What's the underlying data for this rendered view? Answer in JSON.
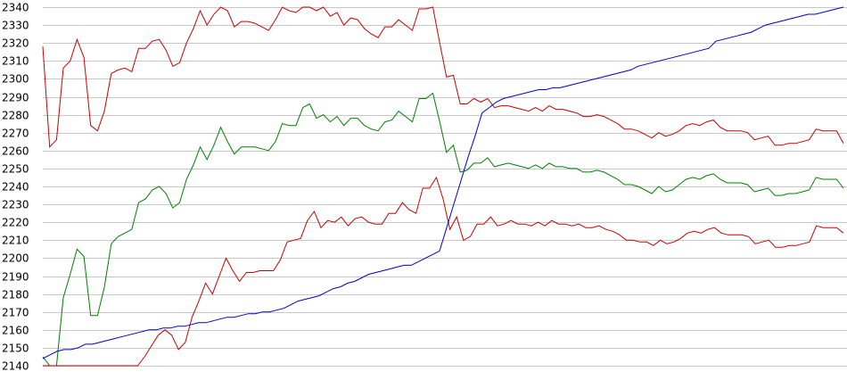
{
  "chart_data": {
    "type": "line",
    "title": "",
    "xlabel": "",
    "ylabel": "",
    "ylim": [
      2140,
      2340
    ],
    "y_ticks": [
      2140,
      2150,
      2160,
      2170,
      2180,
      2190,
      2200,
      2210,
      2220,
      2230,
      2240,
      2250,
      2260,
      2270,
      2280,
      2290,
      2300,
      2310,
      2320,
      2330,
      2340
    ],
    "grid": "horizontal",
    "legend": "none",
    "x_count": 133,
    "series": [
      {
        "color": "#cc0000",
        "values": [
          2318,
          2262,
          2266,
          2306,
          2310,
          2322,
          2312,
          2274,
          2271,
          2282,
          2303,
          2305,
          2306,
          2304,
          2317,
          2317,
          2321,
          2322,
          2316,
          2307,
          2309,
          2320,
          2328,
          2338,
          2330,
          2336,
          2340,
          2338,
          2329,
          2332,
          2332,
          2331,
          2329,
          2327,
          2333,
          2340,
          2338,
          2337,
          2340,
          2340,
          2338,
          2340,
          2335,
          2337,
          2330,
          2334,
          2333,
          2328,
          2325,
          2323,
          2329,
          2329,
          2333,
          2330,
          2327,
          2339,
          2339,
          2340,
          2320,
          2301,
          2302,
          2286,
          2286,
          2289,
          2287,
          2289,
          2284,
          2285,
          2285,
          2284,
          2283,
          2282,
          2284,
          2282,
          2285,
          2283,
          2283,
          2282,
          2281,
          2279,
          2279,
          2280,
          2279,
          2277,
          2275,
          2272,
          2272,
          2271,
          2269,
          2267,
          2270,
          2268,
          2269,
          2271,
          2274,
          2275,
          2274,
          2276,
          2277,
          2273,
          2271,
          2271,
          2271,
          2270,
          2266,
          2267,
          2268,
          2263,
          2263,
          2264,
          2264,
          2265,
          2266,
          2272,
          2271,
          2271,
          2271,
          2264
        ]
      },
      {
        "color": "#008000",
        "values": [
          2145,
          2140,
          2140,
          2178,
          2191,
          2205,
          2201,
          2168,
          2168,
          2184,
          2208,
          2212,
          2214,
          2216,
          2231,
          2233,
          2238,
          2240,
          2236,
          2228,
          2231,
          2244,
          2252,
          2262,
          2255,
          2263,
          2273,
          2265,
          2258,
          2262,
          2262,
          2262,
          2261,
          2260,
          2265,
          2275,
          2274,
          2274,
          2284,
          2286,
          2278,
          2280,
          2276,
          2279,
          2274,
          2278,
          2278,
          2274,
          2272,
          2271,
          2276,
          2277,
          2282,
          2279,
          2276,
          2289,
          2289,
          2292,
          2276,
          2259,
          2263,
          2248,
          2249,
          2253,
          2253,
          2256,
          2251,
          2252,
          2253,
          2252,
          2251,
          2250,
          2252,
          2250,
          2253,
          2251,
          2251,
          2250,
          2250,
          2248,
          2248,
          2249,
          2248,
          2246,
          2244,
          2241,
          2241,
          2240,
          2238,
          2236,
          2240,
          2237,
          2238,
          2241,
          2244,
          2245,
          2244,
          2246,
          2247,
          2244,
          2242,
          2242,
          2242,
          2241,
          2237,
          2238,
          2239,
          2235,
          2235,
          2236,
          2236,
          2237,
          2238,
          2245,
          2244,
          2244,
          2244,
          2239
        ]
      },
      {
        "color": "#cc0000",
        "values": [
          2140,
          2140,
          2140,
          2140,
          2140,
          2140,
          2140,
          2140,
          2140,
          2140,
          2140,
          2140,
          2140,
          2140,
          2140,
          2145,
          2151,
          2157,
          2160,
          2157,
          2149,
          2153,
          2167,
          2176,
          2186,
          2180,
          2190,
          2200,
          2193,
          2187,
          2192,
          2192,
          2193,
          2193,
          2193,
          2199,
          2209,
          2210,
          2211,
          2221,
          2226,
          2217,
          2221,
          2220,
          2223,
          2218,
          2222,
          2223,
          2220,
          2219,
          2219,
          2225,
          2225,
          2231,
          2227,
          2225,
          2239,
          2239,
          2245,
          2233,
          2216,
          2223,
          2210,
          2212,
          2219,
          2219,
          2223,
          2218,
          2219,
          2221,
          2219,
          2219,
          2218,
          2220,
          2218,
          2221,
          2219,
          2219,
          2218,
          2219,
          2217,
          2217,
          2218,
          2216,
          2215,
          2213,
          2210,
          2210,
          2209,
          2209,
          2207,
          2210,
          2208,
          2209,
          2211,
          2214,
          2215,
          2214,
          2216,
          2217,
          2214,
          2213,
          2213,
          2213,
          2212,
          2208,
          2209,
          2210,
          2206,
          2206,
          2207,
          2207,
          2208,
          2209,
          2218,
          2217,
          2217,
          2217,
          2214
        ]
      },
      {
        "color": "#0000cc",
        "values": [
          2144,
          2146,
          2148,
          2149,
          2149,
          2150,
          2152,
          2152,
          2153,
          2154,
          2155,
          2156,
          2157,
          2158,
          2159,
          2160,
          2160,
          2161,
          2161,
          2162,
          2162,
          2163,
          2164,
          2164,
          2165,
          2166,
          2167,
          2167,
          2168,
          2169,
          2169,
          2170,
          2170,
          2171,
          2172,
          2174,
          2176,
          2177,
          2178,
          2179,
          2181,
          2183,
          2184,
          2186,
          2187,
          2189,
          2191,
          2192,
          2193,
          2194,
          2195,
          2196,
          2196,
          2198,
          2200,
          2202,
          2204,
          2217,
          2230,
          2243,
          2256,
          2268,
          2281,
          2284,
          2287,
          2289,
          2290,
          2291,
          2292,
          2293,
          2294,
          2294,
          2295,
          2295,
          2296,
          2297,
          2298,
          2299,
          2300,
          2301,
          2302,
          2303,
          2304,
          2305,
          2307,
          2308,
          2309,
          2310,
          2311,
          2312,
          2313,
          2314,
          2315,
          2316,
          2317,
          2321,
          2322,
          2323,
          2324,
          2325,
          2326,
          2328,
          2330,
          2331,
          2332,
          2333,
          2334,
          2335,
          2336,
          2336,
          2337,
          2338,
          2339,
          2340
        ]
      }
    ]
  }
}
